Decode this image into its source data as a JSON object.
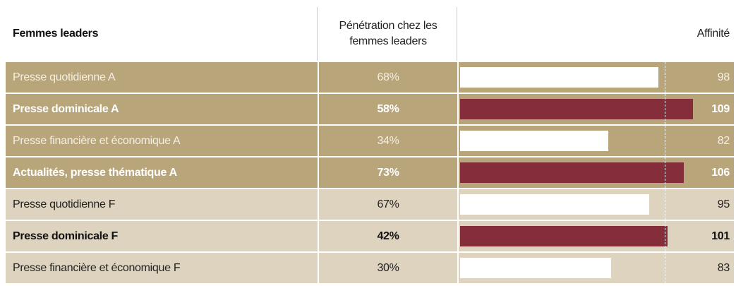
{
  "chart_data": {
    "type": "table_bar",
    "headers": [
      "Femmes leaders",
      "Pénétration chez les femmes leaders",
      "Affinité"
    ],
    "categories": [
      "Presse quotidienne A",
      "Presse dominicale A",
      "Presse financière et économique A",
      "Actualités, presse thématique A",
      "Presse quotidienne F",
      "Presse dominicale F",
      "Presse financière et économique F"
    ],
    "penetration": [
      "68%",
      "58%",
      "34%",
      "73%",
      "67%",
      "42%",
      "30%"
    ],
    "values": [
      98,
      109,
      82,
      106,
      95,
      101,
      83
    ],
    "emphasis": [
      false,
      true,
      false,
      true,
      false,
      true,
      false
    ],
    "row_colors": [
      "#b9a57a",
      "#b9a57a",
      "#b9a57a",
      "#b9a57a",
      "#ddd3bf",
      "#ddd3bf",
      "#ddd3bf"
    ],
    "text_colors": [
      "#f4efe4",
      "#ffffff",
      "#f4efe4",
      "#ffffff",
      "#222222",
      "#111111",
      "#222222"
    ],
    "bar_colors": [
      "#ffffff",
      "#852d3a",
      "#ffffff",
      "#852d3a",
      "#ffffff",
      "#852d3a",
      "#ffffff"
    ],
    "xlim": [
      35,
      113
    ],
    "reference_line": 100
  }
}
